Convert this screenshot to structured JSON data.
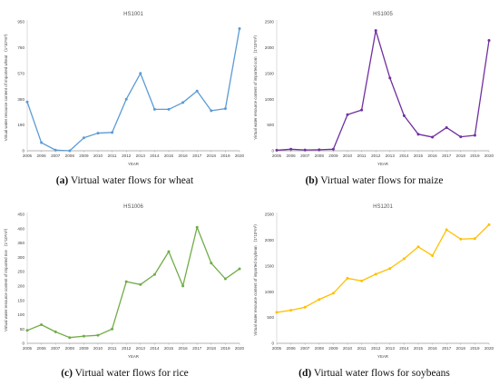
{
  "figure": {
    "panels": [
      {
        "letter": "(a)",
        "caption": "Virtual water flows for wheat"
      },
      {
        "letter": "(b)",
        "caption": "Virtual water flows for maize"
      },
      {
        "letter": "(c)",
        "caption": "Virtual water flows for rice"
      },
      {
        "letter": "(d)",
        "caption": "Virtual water flows for soybeans"
      }
    ]
  },
  "chart_data": [
    {
      "type": "line",
      "title": "HS1001",
      "xlabel": "YEAR",
      "ylabel": "Virtual water resource content of imported wheat （1*10⁸m³）",
      "x": [
        2005,
        2006,
        2007,
        2008,
        2009,
        2010,
        2011,
        2012,
        2013,
        2014,
        2015,
        2016,
        2017,
        2018,
        2019,
        2020
      ],
      "values": [
        360,
        60,
        5,
        0,
        95,
        130,
        135,
        380,
        570,
        305,
        305,
        355,
        440,
        295,
        310,
        900
      ],
      "yticks": [
        0,
        190,
        380,
        570,
        760,
        950
      ],
      "ylim": [
        0,
        950
      ],
      "color": "#5b9bd5",
      "grid": false
    },
    {
      "type": "line",
      "title": "HS1005",
      "xlabel": "YEAR",
      "ylabel": "Virtual water resource content of imported corn （1*10⁸m³）",
      "x": [
        2005,
        2006,
        2007,
        2008,
        2009,
        2010,
        2011,
        2012,
        2013,
        2014,
        2015,
        2016,
        2017,
        2018,
        2019,
        2020
      ],
      "values": [
        10,
        30,
        15,
        20,
        30,
        700,
        790,
        2330,
        1410,
        680,
        320,
        265,
        450,
        270,
        300,
        2140
      ],
      "yticks": [
        0,
        500,
        1000,
        1500,
        2000,
        2500
      ],
      "ylim": [
        0,
        2500
      ],
      "color": "#7030a0",
      "grid": false
    },
    {
      "type": "line",
      "title": "HS1006",
      "xlabel": "YEAR",
      "ylabel": "Virtual water resource content of imported rice （1*10⁸m³）",
      "x": [
        2005,
        2006,
        2007,
        2008,
        2009,
        2010,
        2011,
        2012,
        2013,
        2014,
        2015,
        2016,
        2017,
        2018,
        2019,
        2020
      ],
      "values": [
        45,
        65,
        40,
        20,
        25,
        28,
        50,
        215,
        205,
        240,
        320,
        200,
        405,
        280,
        225,
        260
      ],
      "yticks": [
        0,
        50,
        100,
        150,
        200,
        250,
        300,
        350,
        400,
        450
      ],
      "ylim": [
        0,
        450
      ],
      "color": "#70ad47",
      "grid": false
    },
    {
      "type": "line",
      "title": "HS1201",
      "xlabel": "YEAR",
      "ylabel": "Virtual water resource content of imported soybean （1*10⁸m³）",
      "x": [
        2005,
        2006,
        2007,
        2008,
        2009,
        2010,
        2011,
        2012,
        2013,
        2014,
        2015,
        2016,
        2017,
        2018,
        2019,
        2020
      ],
      "values": [
        600,
        640,
        700,
        850,
        970,
        1260,
        1210,
        1340,
        1450,
        1640,
        1870,
        1700,
        2200,
        2020,
        2030,
        2300
      ],
      "yticks": [
        0,
        500,
        1000,
        1500,
        2000,
        2500
      ],
      "ylim": [
        0,
        2500
      ],
      "color": "#ffc000",
      "grid": false
    }
  ]
}
